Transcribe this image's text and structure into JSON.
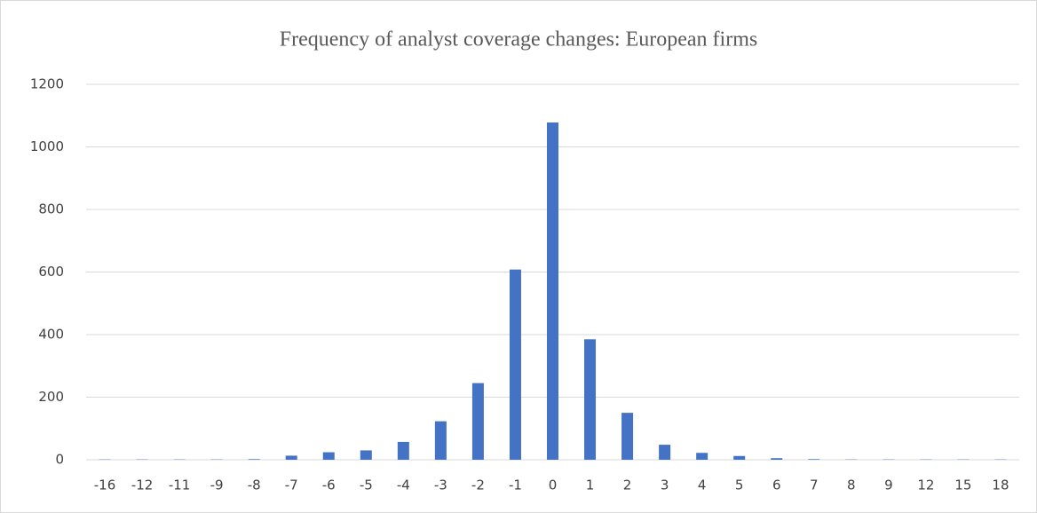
{
  "chart_data": {
    "type": "bar",
    "title": "Frequency of analyst coverage changes: European firms",
    "categories": [
      "-16",
      "-12",
      "-11",
      "-9",
      "-8",
      "-7",
      "-6",
      "-5",
      "-4",
      "-3",
      "-2",
      "-1",
      "0",
      "1",
      "2",
      "3",
      "4",
      "5",
      "6",
      "7",
      "8",
      "9",
      "12",
      "15",
      "18"
    ],
    "values": [
      1,
      1,
      1,
      1,
      2,
      13,
      24,
      30,
      57,
      123,
      245,
      608,
      1078,
      385,
      150,
      48,
      22,
      12,
      5,
      2,
      1,
      1,
      1,
      1,
      1
    ],
    "color": "#4472c4",
    "ylim": [
      0,
      1200
    ],
    "yticks": [
      0,
      200,
      400,
      600,
      800,
      1000,
      1200
    ],
    "grid": true
  }
}
